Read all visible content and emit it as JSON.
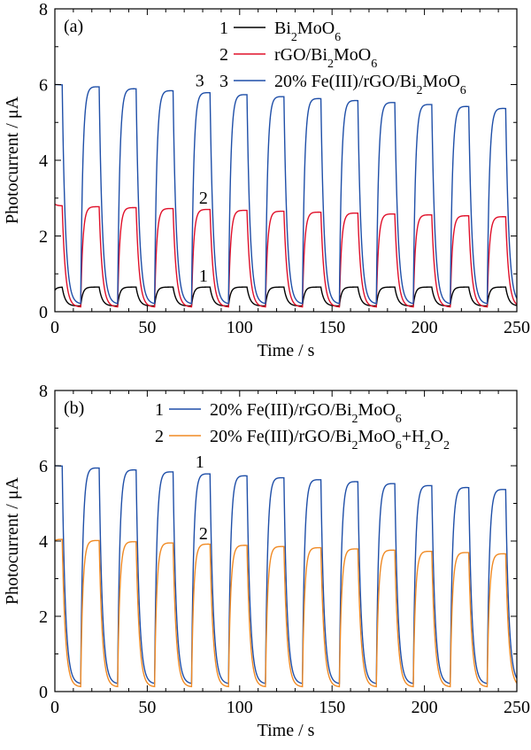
{
  "chart_data": [
    {
      "type": "line",
      "panel_label": "(a)",
      "xlabel": "Time / s",
      "ylabel": "Photocurrent / μA",
      "xlim": [
        0,
        250
      ],
      "ylim": [
        0,
        8
      ],
      "xticks": [
        0,
        50,
        100,
        150,
        200,
        250
      ],
      "yticks": [
        0,
        2,
        4,
        6,
        8
      ],
      "grid": false,
      "legend_position": "top-right",
      "light_on_off_period_s": 20,
      "series": [
        {
          "name_parts": [
            "Bi",
            "2",
            "MoO",
            "6"
          ],
          "legend_num": "1",
          "color": "#000000",
          "on_value": 0.65,
          "off_value": 0.15,
          "start_value": 0.55,
          "end_decay": 0.0
        },
        {
          "name_parts": [
            "rGO/Bi",
            "2",
            "MoO",
            "6"
          ],
          "legend_num": "2",
          "color": "#e0102a",
          "on_value": 2.8,
          "off_value": 0.12,
          "start_value": 2.85,
          "end_decay": 0.3
        },
        {
          "name_parts": [
            "20% Fe(III)/rGO/Bi",
            "2",
            "MoO",
            "6"
          ],
          "legend_num": "3",
          "color": "#1f4fa8",
          "on_value": 6.0,
          "off_value": 0.2,
          "start_value": 6.0,
          "end_decay": 0.65
        }
      ],
      "annotations": [
        {
          "text": "3",
          "x": 76,
          "y": 5.95
        },
        {
          "text": "2",
          "x": 78,
          "y": 2.85
        },
        {
          "text": "1",
          "x": 78,
          "y": 0.8
        }
      ]
    },
    {
      "type": "line",
      "panel_label": "(b)",
      "xlabel": "Time / s",
      "ylabel": "Photocurrent / μA",
      "xlim": [
        0,
        250
      ],
      "ylim": [
        0,
        8
      ],
      "xticks": [
        0,
        50,
        100,
        150,
        200,
        250
      ],
      "yticks": [
        0,
        2,
        4,
        6,
        8
      ],
      "grid": false,
      "legend_position": "top-right",
      "light_on_off_period_s": 20,
      "series": [
        {
          "name_parts": [
            "20% Fe(III)/rGO/Bi",
            "2",
            "MoO",
            "6"
          ],
          "legend_num": "1",
          "color": "#1f4fa8",
          "on_value": 6.0,
          "off_value": 0.2,
          "start_value": 6.0,
          "end_decay": 0.65
        },
        {
          "name_parts": [
            "20% Fe(III)/rGO/Bi",
            "2",
            "MoO",
            "6",
            "+H",
            "2",
            "O",
            "2"
          ],
          "legend_num": "2",
          "color": "#f08a24",
          "on_value": 4.05,
          "off_value": 0.12,
          "start_value": 4.0,
          "end_decay": 0.4
        }
      ],
      "annotations": [
        {
          "text": "1",
          "x": 76,
          "y": 5.95
        },
        {
          "text": "2",
          "x": 78,
          "y": 4.05
        }
      ]
    }
  ]
}
